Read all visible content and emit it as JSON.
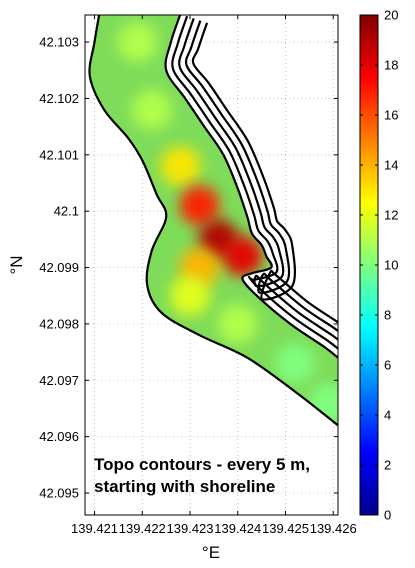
{
  "chart_data": {
    "type": "heatmap",
    "subtitle": "",
    "xlabel": "°E",
    "ylabel": "°N",
    "xlim": [
      139.4208,
      139.4261
    ],
    "ylim": [
      42.09461,
      42.10348
    ],
    "xticks": [
      139.421,
      139.422,
      139.423,
      139.424,
      139.425,
      139.426
    ],
    "yticks": [
      42.095,
      42.096,
      42.097,
      42.098,
      42.099,
      42.1,
      42.101,
      42.102,
      42.103
    ],
    "xtick_labels": [
      "139.421",
      "139.422",
      "139.423",
      "139.424",
      "139.425",
      "139.426"
    ],
    "ytick_labels": [
      "42.095",
      "42.096",
      "42.097",
      "42.098",
      "42.099",
      "42.1",
      "42.101",
      "42.102",
      "42.103"
    ],
    "grid": true,
    "annotation": [
      "Topo contours - every 5 m,",
      "starting with shoreline"
    ],
    "colorbar": {
      "colormap": "jet",
      "range": [
        0,
        20
      ],
      "ticks": [
        0,
        2,
        4,
        6,
        8,
        10,
        12,
        14,
        16,
        18,
        20
      ]
    },
    "centerline": [
      [
        139.422,
        42.1035
      ],
      [
        139.4218,
        42.103
      ],
      [
        139.4216,
        42.1024
      ],
      [
        139.4218,
        42.1019
      ],
      [
        139.4223,
        42.1015
      ],
      [
        139.4226,
        42.1011
      ],
      [
        139.4229,
        42.1005
      ],
      [
        139.4233,
        42.1001
      ],
      [
        139.4233,
        42.0996
      ],
      [
        139.4232,
        42.099
      ],
      [
        139.4235,
        42.0986
      ],
      [
        139.4241,
        42.0982
      ],
      [
        139.4248,
        42.0978
      ],
      [
        139.4255,
        42.0973
      ],
      [
        139.4261,
        42.0969
      ]
    ],
    "shoreline": [
      [
        139.4228,
        42.1035
      ],
      [
        139.4226,
        42.103
      ],
      [
        139.4225,
        42.1025
      ],
      [
        139.4229,
        42.102
      ],
      [
        139.4233,
        42.1015
      ],
      [
        139.4237,
        42.101
      ],
      [
        139.424,
        42.1004
      ],
      [
        139.4242,
        42.0999
      ],
      [
        139.4243,
        42.0996
      ],
      [
        139.4245,
        42.0994
      ],
      [
        139.4246,
        42.0992
      ],
      [
        139.4247,
        42.099
      ],
      [
        139.4243,
        42.0989
      ],
      [
        139.4241,
        42.0988
      ],
      [
        139.4244,
        42.0985
      ],
      [
        139.4251,
        42.098
      ],
      [
        139.4258,
        42.0976
      ],
      [
        139.4261,
        42.0974
      ]
    ],
    "offshore_edge": [
      [
        139.4211,
        42.1035
      ],
      [
        139.421,
        42.103
      ],
      [
        139.4209,
        42.1024
      ],
      [
        139.4212,
        42.1018
      ],
      [
        139.4217,
        42.1013
      ],
      [
        139.422,
        42.1009
      ],
      [
        139.4223,
        42.1003
      ],
      [
        139.4225,
        42.0999
      ],
      [
        139.4222,
        42.0993
      ],
      [
        139.4221,
        42.0987
      ],
      [
        139.4224,
        42.0982
      ],
      [
        139.4232,
        42.0978
      ],
      [
        139.4242,
        42.0974
      ],
      [
        139.4252,
        42.0968
      ],
      [
        139.4261,
        42.0962
      ]
    ],
    "contours": [
      {
        "depth_m": 0,
        "points": "shoreline"
      },
      {
        "depth_m": 5
      },
      {
        "depth_m": 10
      },
      {
        "depth_m": 15
      },
      {
        "depth_m": 20
      }
    ],
    "depth_samples": [
      {
        "lon": 139.4219,
        "lat": 42.103,
        "value": 11
      },
      {
        "lon": 139.4222,
        "lat": 42.1018,
        "value": 11
      },
      {
        "lon": 139.4228,
        "lat": 42.1008,
        "value": 13
      },
      {
        "lon": 139.4232,
        "lat": 42.1001,
        "value": 17
      },
      {
        "lon": 139.4236,
        "lat": 42.0995,
        "value": 19
      },
      {
        "lon": 139.4241,
        "lat": 42.0992,
        "value": 18
      },
      {
        "lon": 139.4232,
        "lat": 42.099,
        "value": 14
      },
      {
        "lon": 139.423,
        "lat": 42.0985,
        "value": 12
      },
      {
        "lon": 139.424,
        "lat": 42.098,
        "value": 11
      },
      {
        "lon": 139.4252,
        "lat": 42.0973,
        "value": 10
      },
      {
        "lon": 139.4259,
        "lat": 42.0966,
        "value": 10
      }
    ]
  }
}
